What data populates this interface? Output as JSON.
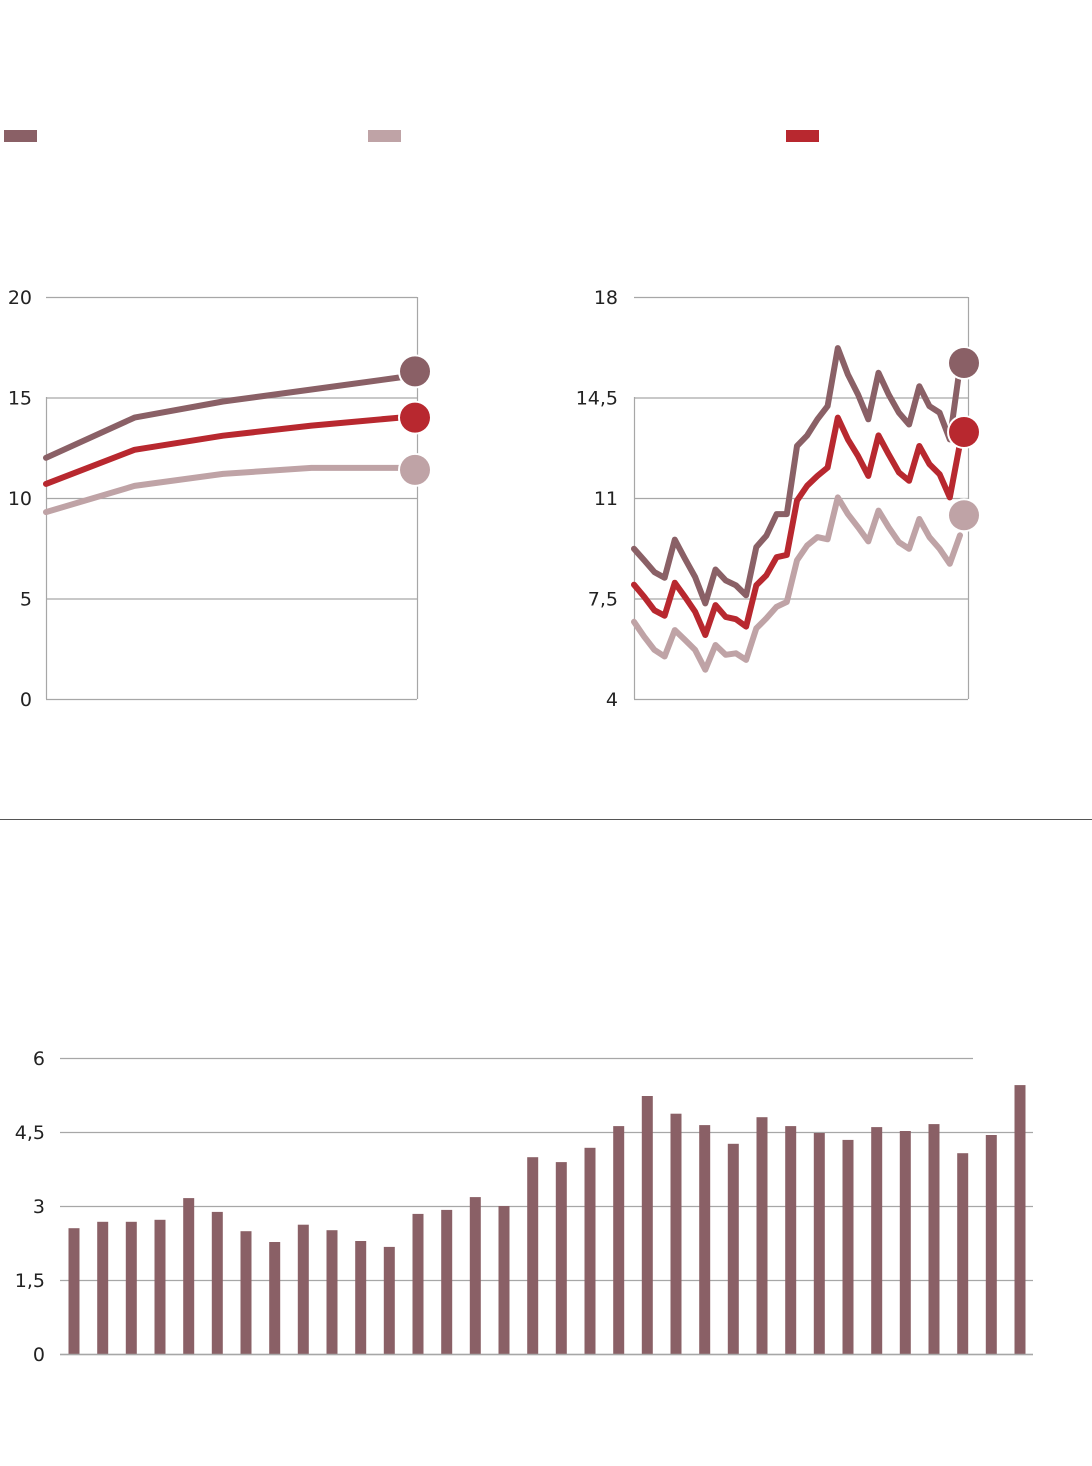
{
  "colors": {
    "series_a": "#8a6066",
    "series_b": "#bfa3a6",
    "series_c": "#b8282f",
    "grid": "#a7a7a7",
    "bars": "#8a6066"
  },
  "legend": [
    {
      "series": "series_a",
      "color": "#8a6066"
    },
    {
      "series": "series_b",
      "color": "#bfa3a6"
    },
    {
      "series": "series_c",
      "color": "#b8282f"
    }
  ],
  "chart_data": [
    {
      "type": "line",
      "title": "",
      "ylim": [
        0,
        20
      ],
      "yticks": [
        "0",
        "5",
        "10",
        "15",
        "20"
      ],
      "ytick_values": [
        0,
        5,
        10,
        15,
        20
      ],
      "grid": true,
      "x": [
        0,
        1,
        2,
        3,
        4
      ],
      "series": [
        {
          "name": "series_a",
          "color": "#8a6066",
          "values": [
            12.0,
            14.0,
            14.8,
            15.4,
            16.0
          ],
          "end_marker": 16.3
        },
        {
          "name": "series_c",
          "color": "#b8282f",
          "values": [
            10.7,
            12.4,
            13.1,
            13.6,
            14.0
          ],
          "end_marker": 14.0
        },
        {
          "name": "series_b",
          "color": "#bfa3a6",
          "values": [
            9.3,
            10.6,
            11.2,
            11.5,
            11.5
          ],
          "end_marker": 11.4
        }
      ]
    },
    {
      "type": "line",
      "title": "",
      "ylim": [
        4,
        18
      ],
      "yticks": [
        "4",
        "7,5",
        "11",
        "14,5",
        "18"
      ],
      "ytick_values": [
        4,
        7.5,
        11,
        14.5,
        18
      ],
      "grid": true,
      "series": [
        {
          "name": "series_a",
          "color": "#8a6066",
          "end_marker": 15.7,
          "values": [
            9.23,
            8.83,
            8.42,
            8.22,
            9.55,
            8.89,
            8.25,
            7.33,
            8.51,
            8.13,
            7.96,
            7.61,
            9.29,
            9.69,
            10.44,
            10.44,
            12.81,
            13.18,
            13.74,
            14.2,
            16.22,
            15.3,
            14.6,
            13.74,
            15.36,
            14.6,
            13.97,
            13.56,
            14.89,
            14.2,
            13.97,
            13.04,
            15.6
          ]
        },
        {
          "name": "series_c",
          "color": "#b8282f",
          "end_marker": 13.3,
          "values": [
            7.98,
            7.56,
            7.09,
            6.9,
            8.05,
            7.56,
            7.04,
            6.23,
            7.27,
            6.86,
            6.78,
            6.52,
            7.96,
            8.31,
            8.94,
            9.02,
            10.91,
            11.43,
            11.77,
            12.06,
            13.8,
            13.04,
            12.46,
            11.77,
            13.18,
            12.52,
            11.89,
            11.6,
            12.81,
            12.18,
            11.83,
            11.02,
            12.9
          ]
        },
        {
          "name": "series_b",
          "color": "#bfa3a6",
          "end_marker": 10.4,
          "values": [
            6.69,
            6.17,
            5.71,
            5.48,
            6.4,
            6.06,
            5.71,
            5.02,
            5.88,
            5.54,
            5.59,
            5.36,
            6.46,
            6.81,
            7.21,
            7.38,
            8.83,
            9.35,
            9.64,
            9.56,
            11.02,
            10.44,
            9.98,
            9.49,
            10.56,
            9.98,
            9.46,
            9.23,
            10.27,
            9.64,
            9.23,
            8.71,
            9.7
          ]
        }
      ]
    },
    {
      "type": "bar",
      "title": "",
      "ylim": [
        0,
        6
      ],
      "yticks": [
        "0",
        "1,5",
        "3",
        "4,5",
        "6"
      ],
      "ytick_values": [
        0,
        1.5,
        3,
        4.5,
        6
      ],
      "grid": true,
      "color": "#8a6066",
      "values": [
        2.55,
        2.68,
        2.68,
        2.72,
        3.16,
        2.88,
        2.49,
        2.27,
        2.62,
        2.51,
        2.29,
        2.17,
        2.84,
        2.92,
        3.18,
        3.0,
        3.99,
        3.89,
        4.18,
        4.62,
        5.23,
        4.87,
        4.64,
        4.26,
        4.8,
        4.62,
        4.48,
        4.34,
        4.6,
        4.52,
        4.66,
        4.07,
        4.44,
        5.45
      ]
    }
  ]
}
